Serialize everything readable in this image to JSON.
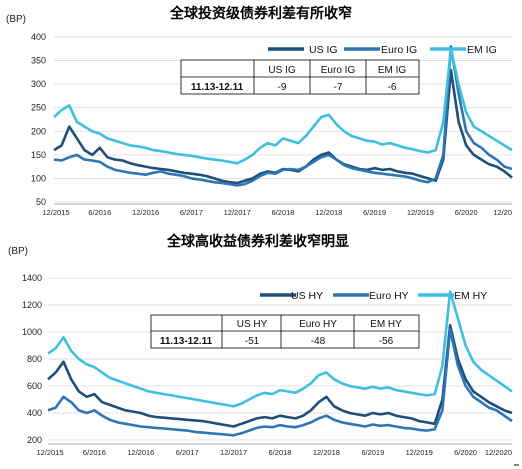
{
  "chart_data": [
    {
      "type": "line",
      "title": "全球投资级债券利差有所收窄",
      "ylabel": "(BP)",
      "ylim": [
        50,
        400
      ],
      "yticks": [
        "50",
        "100",
        "150",
        "200",
        "250",
        "300",
        "350",
        "400"
      ],
      "xlim": [
        "2015-12",
        "2020-12"
      ],
      "xticks": [
        "12/2015",
        "6/2016",
        "12/2016",
        "6/2017",
        "12/2017",
        "6/2018",
        "12/2018",
        "6/2019",
        "12/2019",
        "6/2020",
        "12/20"
      ],
      "grid": "horizontal",
      "legend": "top-right",
      "x": [
        "2015-12",
        "2016-01",
        "2016-02",
        "2016-03",
        "2016-04",
        "2016-05",
        "2016-06",
        "2016-07",
        "2016-08",
        "2016-09",
        "2016-10",
        "2016-11",
        "2016-12",
        "2017-01",
        "2017-02",
        "2017-03",
        "2017-04",
        "2017-05",
        "2017-06",
        "2017-07",
        "2017-08",
        "2017-09",
        "2017-10",
        "2017-11",
        "2017-12",
        "2018-01",
        "2018-02",
        "2018-03",
        "2018-04",
        "2018-05",
        "2018-06",
        "2018-07",
        "2018-08",
        "2018-09",
        "2018-10",
        "2018-11",
        "2018-12",
        "2019-01",
        "2019-02",
        "2019-03",
        "2019-04",
        "2019-05",
        "2019-06",
        "2019-07",
        "2019-08",
        "2019-09",
        "2019-10",
        "2019-11",
        "2019-12",
        "2020-01",
        "2020-02",
        "2020-03",
        "2020-04",
        "2020-05",
        "2020-06",
        "2020-07",
        "2020-08",
        "2020-09",
        "2020-10",
        "2020-11",
        "2020-12"
      ],
      "series": [
        {
          "name": "US IG",
          "color": "#1f4e79",
          "values": [
            160,
            170,
            210,
            185,
            160,
            150,
            165,
            145,
            140,
            138,
            132,
            128,
            125,
            122,
            120,
            118,
            115,
            112,
            110,
            108,
            105,
            100,
            95,
            92,
            90,
            95,
            100,
            110,
            115,
            112,
            120,
            118,
            115,
            125,
            140,
            150,
            155,
            140,
            130,
            125,
            120,
            118,
            122,
            118,
            120,
            115,
            112,
            110,
            105,
            100,
            95,
            140,
            330,
            220,
            170,
            150,
            140,
            130,
            125,
            115,
            102
          ]
        },
        {
          "name": "Euro IG",
          "color": "#2e75b6",
          "values": [
            140,
            138,
            145,
            150,
            140,
            138,
            135,
            125,
            118,
            115,
            112,
            110,
            108,
            112,
            115,
            110,
            108,
            105,
            100,
            98,
            95,
            92,
            90,
            88,
            85,
            88,
            95,
            105,
            112,
            110,
            118,
            120,
            118,
            125,
            135,
            145,
            150,
            140,
            128,
            122,
            118,
            115,
            112,
            110,
            108,
            106,
            104,
            100,
            95,
            92,
            100,
            150,
            380,
            280,
            200,
            175,
            165,
            150,
            140,
            125,
            120
          ]
        },
        {
          "name": "EM IG",
          "color": "#3fbfe0",
          "values": [
            230,
            245,
            255,
            220,
            210,
            200,
            195,
            185,
            180,
            175,
            170,
            168,
            165,
            160,
            158,
            155,
            152,
            150,
            148,
            145,
            142,
            140,
            138,
            135,
            132,
            140,
            150,
            165,
            175,
            170,
            185,
            180,
            175,
            190,
            210,
            230,
            235,
            215,
            200,
            190,
            185,
            180,
            178,
            172,
            175,
            170,
            165,
            162,
            158,
            155,
            160,
            220,
            375,
            300,
            240,
            210,
            200,
            190,
            180,
            170,
            160
          ]
        }
      ],
      "table": {
        "headers": [
          "",
          "US IG",
          "Euro IG",
          "EM IG"
        ],
        "row": [
          "11.13-12.11",
          "-9",
          "-7",
          "-6"
        ]
      }
    },
    {
      "type": "line",
      "title": "全球高收益债券利差收窄明显",
      "ylabel": "(BP)",
      "ylim": [
        200,
        1400
      ],
      "yticks": [
        "200",
        "400",
        "600",
        "800",
        "1000",
        "1200",
        "1400"
      ],
      "xlim": [
        "2015-12",
        "2020-12"
      ],
      "xticks": [
        "12/2015",
        "6/2016",
        "12/2016",
        "6/2017",
        "12/2017",
        "6/2018",
        "12/2018",
        "6/2019",
        "12/2019",
        "6/2020",
        "12/2020"
      ],
      "grid": "horizontal",
      "legend": "top-right",
      "x": [
        "2015-12",
        "2016-01",
        "2016-02",
        "2016-03",
        "2016-04",
        "2016-05",
        "2016-06",
        "2016-07",
        "2016-08",
        "2016-09",
        "2016-10",
        "2016-11",
        "2016-12",
        "2017-01",
        "2017-02",
        "2017-03",
        "2017-04",
        "2017-05",
        "2017-06",
        "2017-07",
        "2017-08",
        "2017-09",
        "2017-10",
        "2017-11",
        "2017-12",
        "2018-01",
        "2018-02",
        "2018-03",
        "2018-04",
        "2018-05",
        "2018-06",
        "2018-07",
        "2018-08",
        "2018-09",
        "2018-10",
        "2018-11",
        "2018-12",
        "2019-01",
        "2019-02",
        "2019-03",
        "2019-04",
        "2019-05",
        "2019-06",
        "2019-07",
        "2019-08",
        "2019-09",
        "2019-10",
        "2019-11",
        "2019-12",
        "2020-01",
        "2020-02",
        "2020-03",
        "2020-04",
        "2020-05",
        "2020-06",
        "2020-07",
        "2020-08",
        "2020-09",
        "2020-10",
        "2020-11",
        "2020-12"
      ],
      "series": [
        {
          "name": "US HY",
          "color": "#1f4e79",
          "values": [
            650,
            700,
            780,
            650,
            560,
            520,
            540,
            480,
            460,
            440,
            420,
            410,
            400,
            380,
            370,
            365,
            360,
            355,
            350,
            345,
            340,
            330,
            320,
            310,
            300,
            320,
            340,
            360,
            370,
            360,
            380,
            370,
            360,
            380,
            420,
            480,
            520,
            450,
            420,
            400,
            390,
            380,
            400,
            390,
            400,
            380,
            370,
            360,
            340,
            330,
            320,
            500,
            1050,
            800,
            650,
            560,
            520,
            480,
            450,
            420,
            400
          ]
        },
        {
          "name": "Euro HY",
          "color": "#2e75b6",
          "values": [
            420,
            440,
            520,
            480,
            420,
            400,
            420,
            380,
            350,
            330,
            320,
            310,
            300,
            295,
            290,
            285,
            280,
            275,
            270,
            260,
            255,
            250,
            245,
            240,
            235,
            250,
            270,
            290,
            300,
            295,
            310,
            300,
            295,
            310,
            330,
            360,
            380,
            350,
            330,
            320,
            310,
            300,
            315,
            305,
            310,
            300,
            290,
            285,
            275,
            270,
            280,
            420,
            1020,
            750,
            600,
            520,
            480,
            440,
            420,
            380,
            340
          ]
        },
        {
          "name": "EM HY",
          "color": "#3fbfe0",
          "values": [
            840,
            880,
            960,
            860,
            800,
            760,
            740,
            700,
            660,
            640,
            620,
            600,
            580,
            560,
            550,
            540,
            530,
            520,
            510,
            500,
            490,
            480,
            470,
            460,
            450,
            470,
            500,
            530,
            550,
            540,
            570,
            560,
            550,
            580,
            620,
            680,
            700,
            650,
            620,
            600,
            590,
            580,
            595,
            580,
            590,
            570,
            560,
            550,
            540,
            530,
            540,
            750,
            1300,
            1100,
            900,
            780,
            720,
            680,
            640,
            600,
            560
          ]
        }
      ],
      "table": {
        "headers": [
          "",
          "US HY",
          "Euro HY",
          "EM HY"
        ],
        "row": [
          "11.13-12.11",
          "-51",
          "-48",
          "-56"
        ]
      }
    }
  ]
}
